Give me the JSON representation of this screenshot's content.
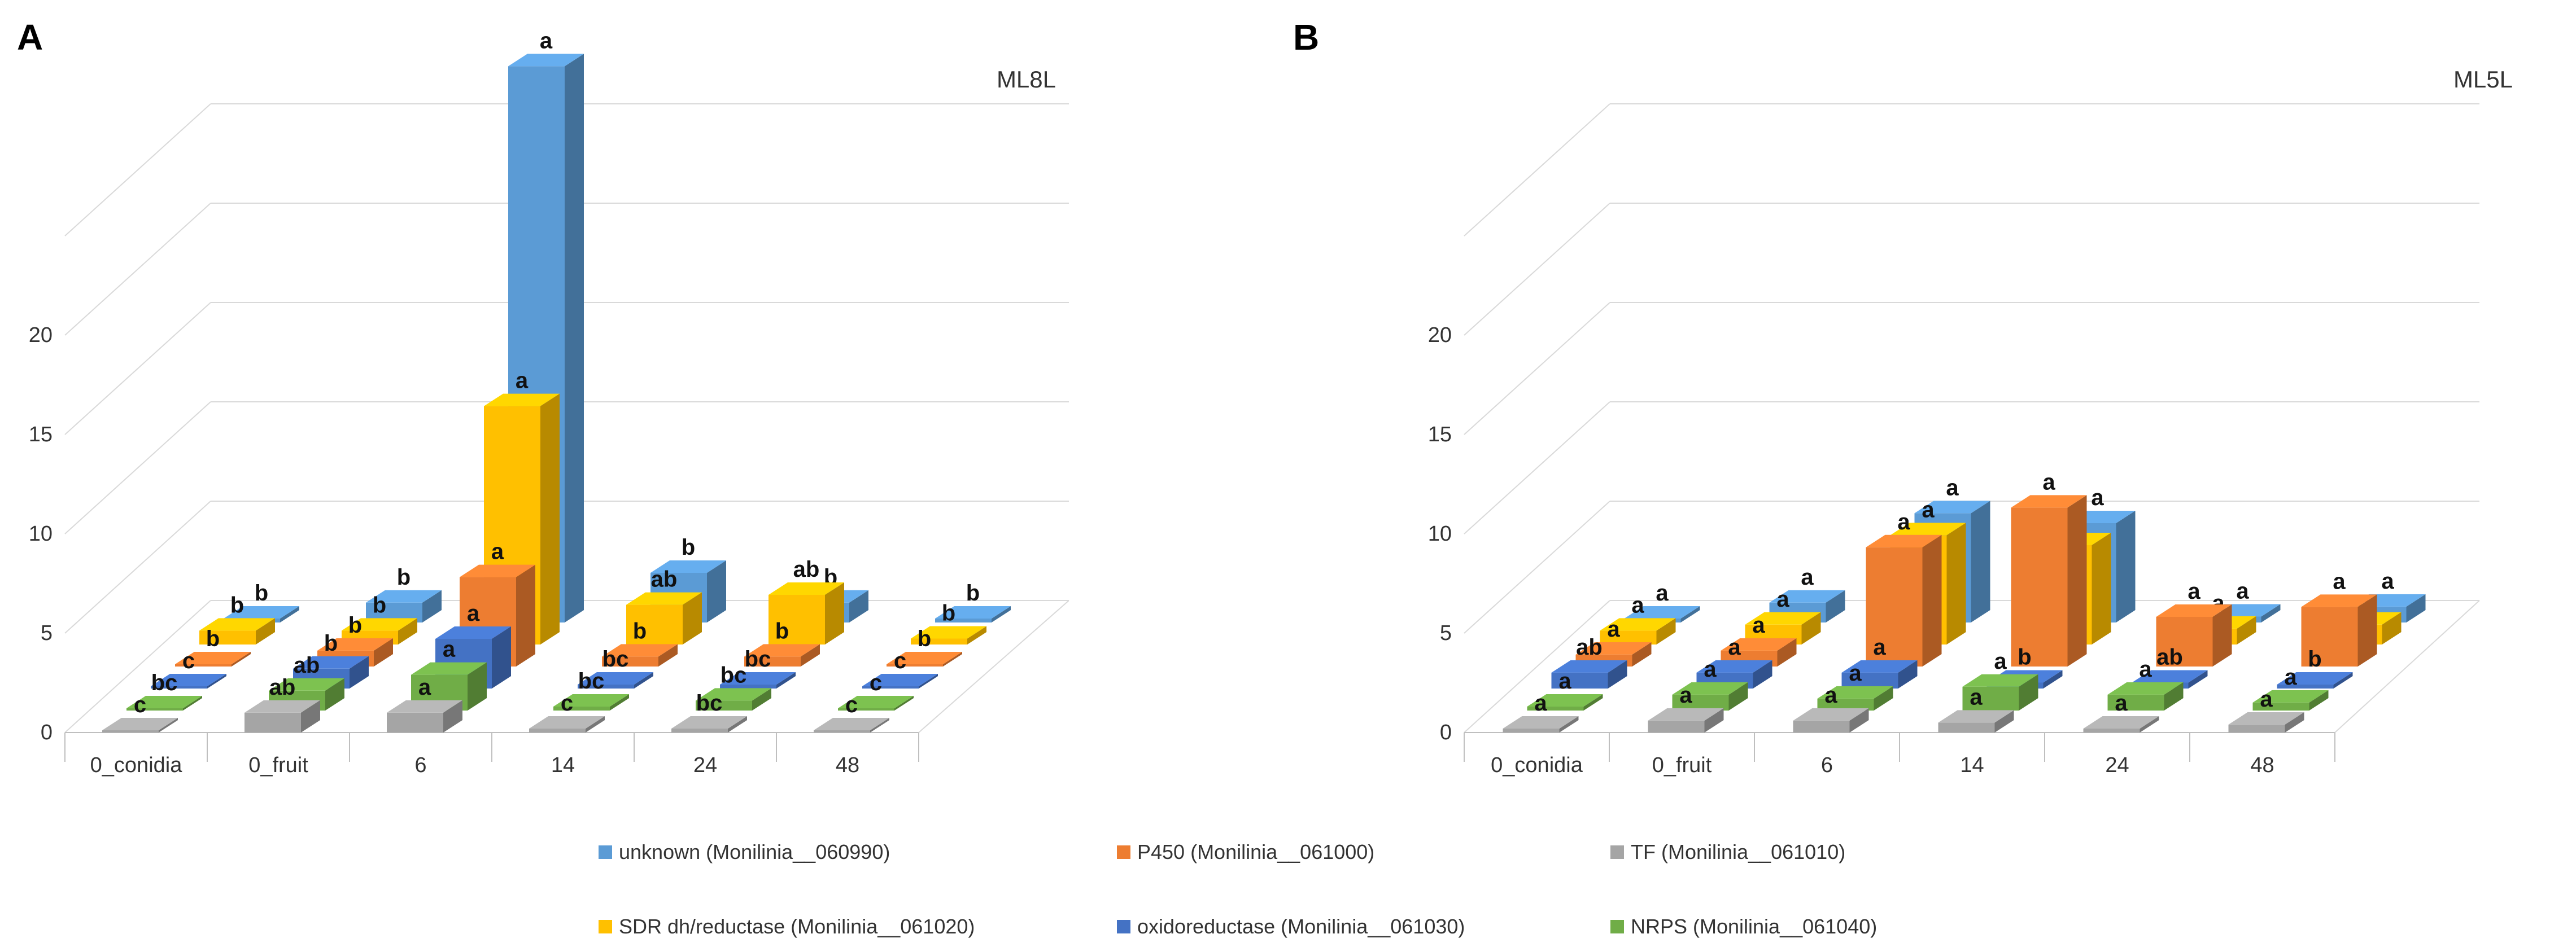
{
  "chart_data": [
    {
      "type": "bar3d",
      "panel_letter": "A",
      "title": "ML8L",
      "categories": [
        "0_conidia",
        "0_fruit",
        "6",
        "14",
        "24",
        "48"
      ],
      "ylim": [
        0,
        25
      ],
      "yticks": [
        "0",
        "5",
        "10",
        "15",
        "20"
      ],
      "series": [
        {
          "name": "unknown (Monilinia__060990)",
          "color": "#5B9BD5",
          "values": [
            0.2,
            1.0,
            28.0,
            2.5,
            1.0,
            0.2
          ],
          "labels": [
            "b",
            "b",
            "a",
            "b",
            "b",
            "b"
          ]
        },
        {
          "name": "SDR dh/reductase (Monilinia__061020)",
          "color": "#FFC000",
          "values": [
            0.7,
            0.7,
            12.0,
            2.0,
            2.5,
            0.3
          ],
          "labels": [
            "b",
            "b",
            "a",
            "ab",
            "ab",
            "b"
          ]
        },
        {
          "name": "P450 (Monilinia__061000)",
          "color": "#ED7D31",
          "values": [
            0.1,
            0.8,
            4.5,
            0.5,
            0.5,
            0.1
          ],
          "labels": [
            "b",
            "b",
            "a",
            "b",
            "b",
            "b"
          ]
        },
        {
          "name": "oxidoreductase (Monilinia__061030)",
          "color": "#4472C4",
          "values": [
            0.1,
            1.0,
            2.5,
            0.2,
            0.2,
            0.1
          ],
          "labels": [
            "c",
            "b",
            "a",
            "bc",
            "bc",
            "c"
          ]
        },
        {
          "name": "NRPS (Monilinia__061040)",
          "color": "#70AD47",
          "values": [
            0.1,
            1.0,
            1.8,
            0.2,
            0.5,
            0.1
          ],
          "labels": [
            "bc",
            "ab",
            "a",
            "bc",
            "bc",
            "c"
          ]
        },
        {
          "name": "TF (Monilinia__061010)",
          "color": "#A5A5A5",
          "values": [
            0.1,
            1.0,
            1.0,
            0.2,
            0.2,
            0.1
          ],
          "labels": [
            "c",
            "ab",
            "a",
            "c",
            "bc",
            "c"
          ]
        }
      ]
    },
    {
      "type": "bar3d",
      "panel_letter": "B",
      "title": "ML5L",
      "categories": [
        "0_conidia",
        "0_fruit",
        "6",
        "14",
        "24",
        "48"
      ],
      "ylim": [
        0,
        25
      ],
      "yticks": [
        "0",
        "5",
        "10",
        "15",
        "20"
      ],
      "series": [
        {
          "name": "unknown (Monilinia__060990)",
          "color": "#5B9BD5",
          "values": [
            0.2,
            1.0,
            5.5,
            5.0,
            0.3,
            0.8
          ],
          "labels": [
            "a",
            "a",
            "a",
            "a",
            "a",
            "a"
          ]
        },
        {
          "name": "SDR dh/reductase (Monilinia__061020)",
          "color": "#FFC000",
          "values": [
            0.7,
            1.0,
            5.5,
            5.0,
            0.8,
            1.0
          ],
          "labels": [
            "a",
            "a",
            "a",
            "a",
            "a",
            "a"
          ]
        },
        {
          "name": "P450 (Monilinia__061000)",
          "color": "#ED7D31",
          "values": [
            0.6,
            0.8,
            6.0,
            8.0,
            2.5,
            3.0
          ],
          "labels": [
            "a",
            "a",
            "a",
            "a",
            "a",
            "a"
          ]
        },
        {
          "name": "oxidoreductase (Monilinia__061030)",
          "color": "#4472C4",
          "values": [
            0.8,
            0.8,
            0.8,
            0.3,
            0.3,
            0.2
          ],
          "labels": [
            "ab",
            "a",
            "a",
            "b",
            "ab",
            "b"
          ]
        },
        {
          "name": "NRPS (Monilinia__061040)",
          "color": "#70AD47",
          "values": [
            0.2,
            0.8,
            0.6,
            1.2,
            0.8,
            0.4
          ],
          "labels": [
            "a",
            "a",
            "a",
            "a",
            "a",
            "a"
          ]
        },
        {
          "name": "TF (Monilinia__061010)",
          "color": "#A5A5A5",
          "values": [
            0.2,
            0.6,
            0.6,
            0.5,
            0.2,
            0.4
          ],
          "labels": [
            "a",
            "a",
            "a",
            "a",
            "a",
            "a"
          ]
        }
      ]
    }
  ],
  "legend": [
    {
      "name": "unknown (Monilinia__060990)",
      "color": "#5B9BD5"
    },
    {
      "name": "P450 (Monilinia__061000)",
      "color": "#ED7D31"
    },
    {
      "name": "TF (Monilinia__061010)",
      "color": "#A5A5A5"
    },
    {
      "name": "SDR dh/reductase (Monilinia__061020)",
      "color": "#FFC000"
    },
    {
      "name": "oxidoreductase (Monilinia__061030)",
      "color": "#4472C4"
    },
    {
      "name": "NRPS (Monilinia__061040)",
      "color": "#70AD47"
    }
  ]
}
